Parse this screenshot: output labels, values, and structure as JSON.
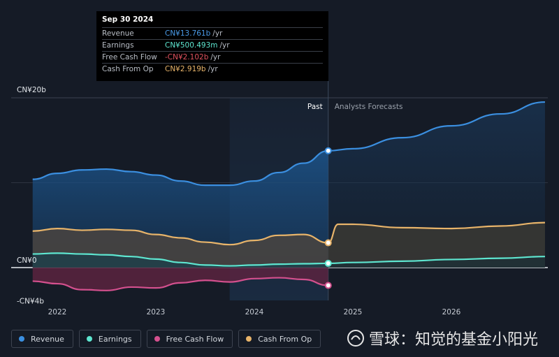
{
  "tooltip": {
    "date": "Sep 30 2024",
    "rows": [
      {
        "label": "Revenue",
        "value": "CN¥13.761b",
        "unit": "/yr",
        "color": "#4a9be8"
      },
      {
        "label": "Earnings",
        "value": "CN¥500.493m",
        "unit": "/yr",
        "color": "#5ee6d0"
      },
      {
        "label": "Free Cash Flow",
        "value": "-CN¥2.102b",
        "unit": "/yr",
        "color": "#e0525e"
      },
      {
        "label": "Cash From Op",
        "value": "CN¥2.919b",
        "unit": "/yr",
        "color": "#e8b46a"
      }
    ]
  },
  "labels": {
    "past": "Past",
    "forecast": "Analysts Forecasts"
  },
  "legend": [
    {
      "label": "Revenue",
      "color": "#3b8fe0"
    },
    {
      "label": "Earnings",
      "color": "#5ee6d0"
    },
    {
      "label": "Free Cash Flow",
      "color": "#d4508e"
    },
    {
      "label": "Cash From Op",
      "color": "#e8b46a"
    }
  ],
  "watermark": "雪球：知觉的基金小阳光",
  "chart_data": {
    "type": "area",
    "y_tick_labels": [
      "CN¥20b",
      "CN¥0",
      "-CN¥4b"
    ],
    "y_tick_values": [
      20,
      0,
      -4
    ],
    "ylim": [
      -4,
      20
    ],
    "x_tick_labels": [
      "2022",
      "2023",
      "2024",
      "2025",
      "2026"
    ],
    "x_tick_values": [
      2022,
      2023,
      2024,
      2025,
      2026
    ],
    "xlim": [
      2021.75,
      2026.95
    ],
    "past_end": 2024.75,
    "highlight_start": 2023.75,
    "series": [
      {
        "name": "Revenue",
        "color": "#3b8fe0",
        "x": [
          2021.75,
          2022.0,
          2022.25,
          2022.5,
          2022.75,
          2023.0,
          2023.25,
          2023.5,
          2023.75,
          2024.0,
          2024.25,
          2024.5,
          2024.75,
          2025.0,
          2025.5,
          2026.0,
          2026.5,
          2026.95
        ],
        "y": [
          10.4,
          11.1,
          11.5,
          11.6,
          11.3,
          10.9,
          10.2,
          9.7,
          9.7,
          10.2,
          11.2,
          12.3,
          13.761,
          14.0,
          15.3,
          16.7,
          18.1,
          19.5
        ]
      },
      {
        "name": "Earnings",
        "color": "#5ee6d0",
        "x": [
          2021.75,
          2022.0,
          2022.25,
          2022.5,
          2022.75,
          2023.0,
          2023.25,
          2023.5,
          2023.75,
          2024.0,
          2024.25,
          2024.5,
          2024.75,
          2025.0,
          2025.5,
          2026.0,
          2026.5,
          2026.95
        ],
        "y": [
          1.6,
          1.7,
          1.6,
          1.5,
          1.3,
          1.0,
          0.6,
          0.3,
          0.2,
          0.3,
          0.4,
          0.45,
          0.5,
          0.6,
          0.75,
          0.95,
          1.1,
          1.3
        ]
      },
      {
        "name": "Free Cash Flow",
        "color": "#d4508e",
        "x": [
          2021.75,
          2022.0,
          2022.25,
          2022.5,
          2022.75,
          2023.0,
          2023.25,
          2023.5,
          2023.75,
          2024.0,
          2024.25,
          2024.5,
          2024.75
        ],
        "y": [
          -1.6,
          -1.9,
          -2.6,
          -2.7,
          -2.3,
          -2.4,
          -1.8,
          -1.5,
          -1.7,
          -1.3,
          -1.2,
          -1.4,
          -2.102
        ]
      },
      {
        "name": "Cash From Op",
        "color": "#e8b46a",
        "x": [
          2021.75,
          2022.0,
          2022.25,
          2022.5,
          2022.75,
          2023.0,
          2023.25,
          2023.5,
          2023.75,
          2024.0,
          2024.25,
          2024.5,
          2024.75,
          2024.85,
          2025.0,
          2025.5,
          2026.0,
          2026.5,
          2026.95
        ],
        "y": [
          4.3,
          4.6,
          4.4,
          4.5,
          4.4,
          3.9,
          3.5,
          3.0,
          2.7,
          3.2,
          3.8,
          3.9,
          2.919,
          5.1,
          5.1,
          4.7,
          4.6,
          4.9,
          5.3
        ]
      }
    ],
    "grid": true,
    "legend": "bottom-left"
  }
}
